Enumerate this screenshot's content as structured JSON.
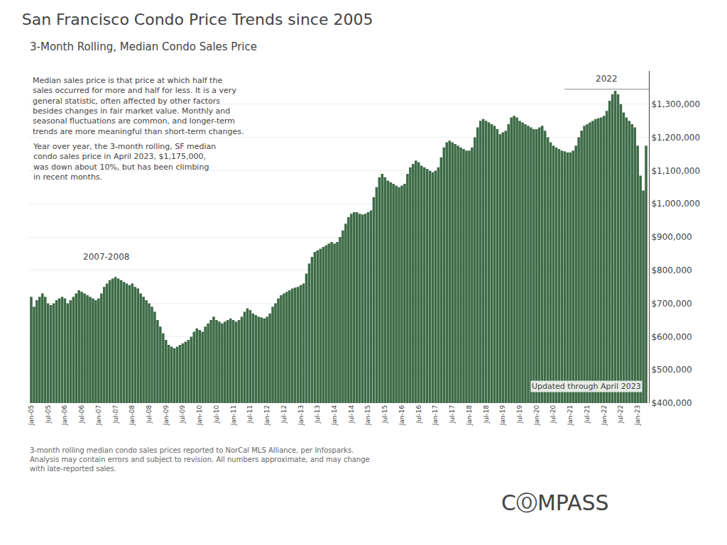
{
  "chart_data": {
    "type": "bar",
    "title": "San Francisco Condo Price Trends since 2005",
    "subtitle": "3-Month Rolling, Median Condo Sales Price",
    "categories": [
      "Jan-05",
      null,
      null,
      null,
      null,
      null,
      "Jul-05",
      null,
      null,
      null,
      null,
      null,
      "Jan-06",
      null,
      null,
      null,
      null,
      null,
      "Jul-06",
      null,
      null,
      null,
      null,
      null,
      "Jan-07",
      null,
      null,
      null,
      null,
      null,
      "Jul-07",
      null,
      null,
      null,
      null,
      null,
      "Jan-08",
      null,
      null,
      null,
      null,
      null,
      "Jul-08",
      null,
      null,
      null,
      null,
      null,
      "Jan-09",
      null,
      null,
      null,
      null,
      null,
      "Jul-09",
      null,
      null,
      null,
      null,
      null,
      "Jan-10",
      null,
      null,
      null,
      null,
      null,
      "Jul-10",
      null,
      null,
      null,
      null,
      null,
      "Jan-11",
      null,
      null,
      null,
      null,
      null,
      "Jul-11",
      null,
      null,
      null,
      null,
      null,
      "Jan-12",
      null,
      null,
      null,
      null,
      null,
      "Jul-12",
      null,
      null,
      null,
      null,
      null,
      "Jan-13",
      null,
      null,
      null,
      null,
      null,
      "Jul-13",
      null,
      null,
      null,
      null,
      null,
      "Jan-14",
      null,
      null,
      null,
      null,
      null,
      "Jul-14",
      null,
      null,
      null,
      null,
      null,
      "Jan-15",
      null,
      null,
      null,
      null,
      null,
      "Jul-15",
      null,
      null,
      null,
      null,
      null,
      "Jan-16",
      null,
      null,
      null,
      null,
      null,
      "Jul-16",
      null,
      null,
      null,
      null,
      null,
      "Jan-17",
      null,
      null,
      null,
      null,
      null,
      "Jul-17",
      null,
      null,
      null,
      null,
      null,
      "Jan-18",
      null,
      null,
      null,
      null,
      null,
      "Jul-18",
      null,
      null,
      null,
      null,
      null,
      "Jan-19",
      null,
      null,
      null,
      null,
      null,
      "Jul-19",
      null,
      null,
      null,
      null,
      null,
      "Jan-20",
      null,
      null,
      null,
      null,
      null,
      "Jul-20",
      null,
      null,
      null,
      null,
      null,
      "Jan-21",
      null,
      null,
      null,
      null,
      null,
      "Jul-21",
      null,
      null,
      null,
      null,
      null,
      "Jan-22",
      null,
      null,
      null,
      null,
      null,
      "Jul-22",
      null,
      null,
      null,
      null,
      null,
      "Jan-23",
      null,
      null,
      null
    ],
    "values": [
      720000,
      690000,
      710000,
      720000,
      730000,
      720000,
      700000,
      695000,
      700000,
      710000,
      715000,
      720000,
      715000,
      700000,
      710000,
      720000,
      730000,
      740000,
      735000,
      730000,
      725000,
      720000,
      715000,
      710000,
      715000,
      730000,
      750000,
      760000,
      770000,
      775000,
      780000,
      775000,
      770000,
      765000,
      760000,
      755000,
      760000,
      750000,
      745000,
      730000,
      720000,
      710000,
      700000,
      690000,
      675000,
      650000,
      630000,
      610000,
      590000,
      575000,
      570000,
      565000,
      570000,
      575000,
      580000,
      585000,
      590000,
      600000,
      615000,
      625000,
      620000,
      615000,
      630000,
      640000,
      650000,
      660000,
      650000,
      645000,
      640000,
      645000,
      650000,
      655000,
      650000,
      645000,
      650000,
      660000,
      675000,
      685000,
      680000,
      670000,
      665000,
      660000,
      658000,
      655000,
      660000,
      670000,
      690000,
      700000,
      715000,
      725000,
      730000,
      735000,
      740000,
      745000,
      748000,
      750000,
      755000,
      760000,
      790000,
      820000,
      840000,
      855000,
      860000,
      865000,
      870000,
      875000,
      880000,
      885000,
      880000,
      885000,
      900000,
      920000,
      940000,
      960000,
      970000,
      975000,
      975000,
      970000,
      968000,
      970000,
      975000,
      980000,
      1020000,
      1050000,
      1080000,
      1090000,
      1080000,
      1070000,
      1065000,
      1060000,
      1055000,
      1050000,
      1055000,
      1060000,
      1090000,
      1110000,
      1120000,
      1130000,
      1125000,
      1115000,
      1110000,
      1105000,
      1100000,
      1095000,
      1100000,
      1110000,
      1140000,
      1170000,
      1185000,
      1190000,
      1185000,
      1180000,
      1175000,
      1170000,
      1165000,
      1160000,
      1160000,
      1170000,
      1200000,
      1230000,
      1250000,
      1255000,
      1250000,
      1245000,
      1240000,
      1235000,
      1225000,
      1210000,
      1215000,
      1220000,
      1240000,
      1260000,
      1265000,
      1260000,
      1250000,
      1245000,
      1240000,
      1235000,
      1230000,
      1225000,
      1225000,
      1230000,
      1235000,
      1220000,
      1200000,
      1185000,
      1175000,
      1170000,
      1165000,
      1160000,
      1158000,
      1155000,
      1155000,
      1160000,
      1175000,
      1200000,
      1220000,
      1235000,
      1240000,
      1245000,
      1250000,
      1255000,
      1258000,
      1260000,
      1265000,
      1280000,
      1310000,
      1330000,
      1340000,
      1330000,
      1300000,
      1275000,
      1260000,
      1250000,
      1240000,
      1230000,
      1175000,
      1085000,
      1040000,
      1175000
    ],
    "color": "#3d6b47",
    "ylim": [
      400000,
      1400000
    ],
    "yticks": [
      {
        "value": 400000,
        "label": "$400,000"
      },
      {
        "value": 500000,
        "label": "$500,000"
      },
      {
        "value": 600000,
        "label": "$600,000"
      },
      {
        "value": 700000,
        "label": "$700,000"
      },
      {
        "value": 800000,
        "label": "$800,000"
      },
      {
        "value": 900000,
        "label": "$900,000"
      },
      {
        "value": 1000000,
        "label": "$1,000,000"
      },
      {
        "value": 1100000,
        "label": "$1,100,000"
      },
      {
        "value": 1200000,
        "label": "$1,200,000"
      },
      {
        "value": 1300000,
        "label": "$1,300,000"
      }
    ],
    "grid": true,
    "annotations": [
      "2007-2008",
      "2022",
      "Updated through April 2023",
      "Median sales price is that price at which half the\nsales occurred for more and half for less. It is a very\ngeneral statistic, often affected by other factors\nbesides changes in fair market value. Monthly and\nseasonal fluctuations are common, and longer-term\ntrends are more meaningful than short-term changes.",
      "Year over year, the 3-month rolling, SF median\ncondo sales price in April 2023, $1,175,000,\nwas down about 10%, but has been climbing\nin recent months.",
      "3-month rolling median condo sales prices reported to NorCal MLS Alliance, per Infosparks.\nAnalysis may contain errors and subject to revision. All numbers approximate, and may change\nwith late-reported sales.",
      "CⓄMPASS"
    ]
  }
}
